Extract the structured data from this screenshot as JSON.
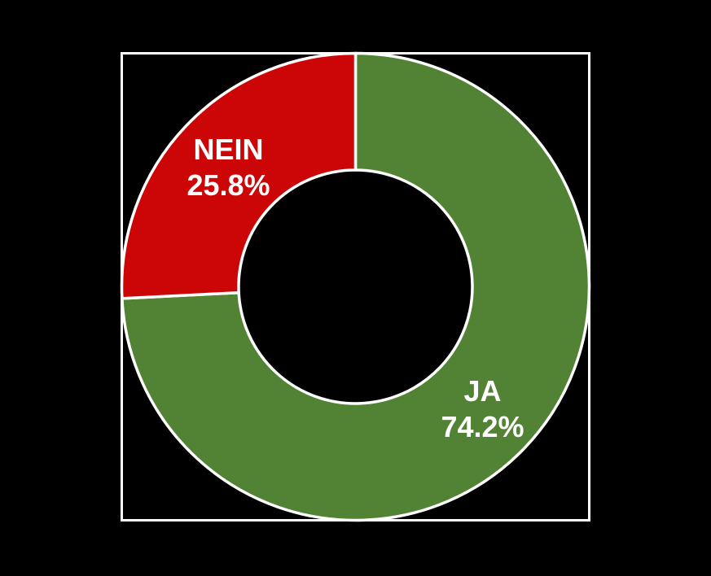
{
  "canvas": {
    "background": "#000000"
  },
  "frame": {
    "stroke": "#FFFFFF"
  },
  "chart_data": {
    "type": "pie",
    "subtype": "donut",
    "title": "",
    "hole": 0.5,
    "start_angle": -90,
    "direction": "clockwise",
    "labels": [
      "JA",
      "NEIN"
    ],
    "values": [
      74.2,
      25.8
    ],
    "percent_labels": [
      "74.2%",
      "25.8%"
    ],
    "colors": [
      "#528233",
      "#CC0606"
    ],
    "slice_border_color": "#FFFFFF",
    "label_color": "#FFFFFF",
    "legend": "none"
  }
}
